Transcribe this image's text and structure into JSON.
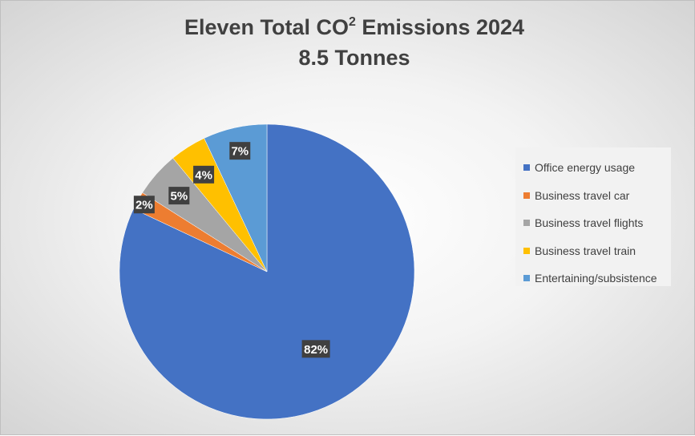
{
  "chart_data": {
    "type": "pie",
    "title_line1_main": "Eleven Total CO",
    "title_line1_sup": "2",
    "title_line1_tail": " Emissions 2024",
    "title_line2": "8.5 Tonnes",
    "categories": [
      "Office energy usage",
      "Business travel car",
      "Business travel flights",
      "Business travel train",
      "Entertaining/subsistence"
    ],
    "values": [
      82,
      2,
      5,
      4,
      7
    ],
    "data_labels": [
      "82%",
      "2%",
      "5%",
      "4%",
      "7%"
    ],
    "colors": [
      "#4472c4",
      "#ed7d31",
      "#a5a5a5",
      "#ffc000",
      "#5b9bd5"
    ],
    "legend_position": "right"
  }
}
